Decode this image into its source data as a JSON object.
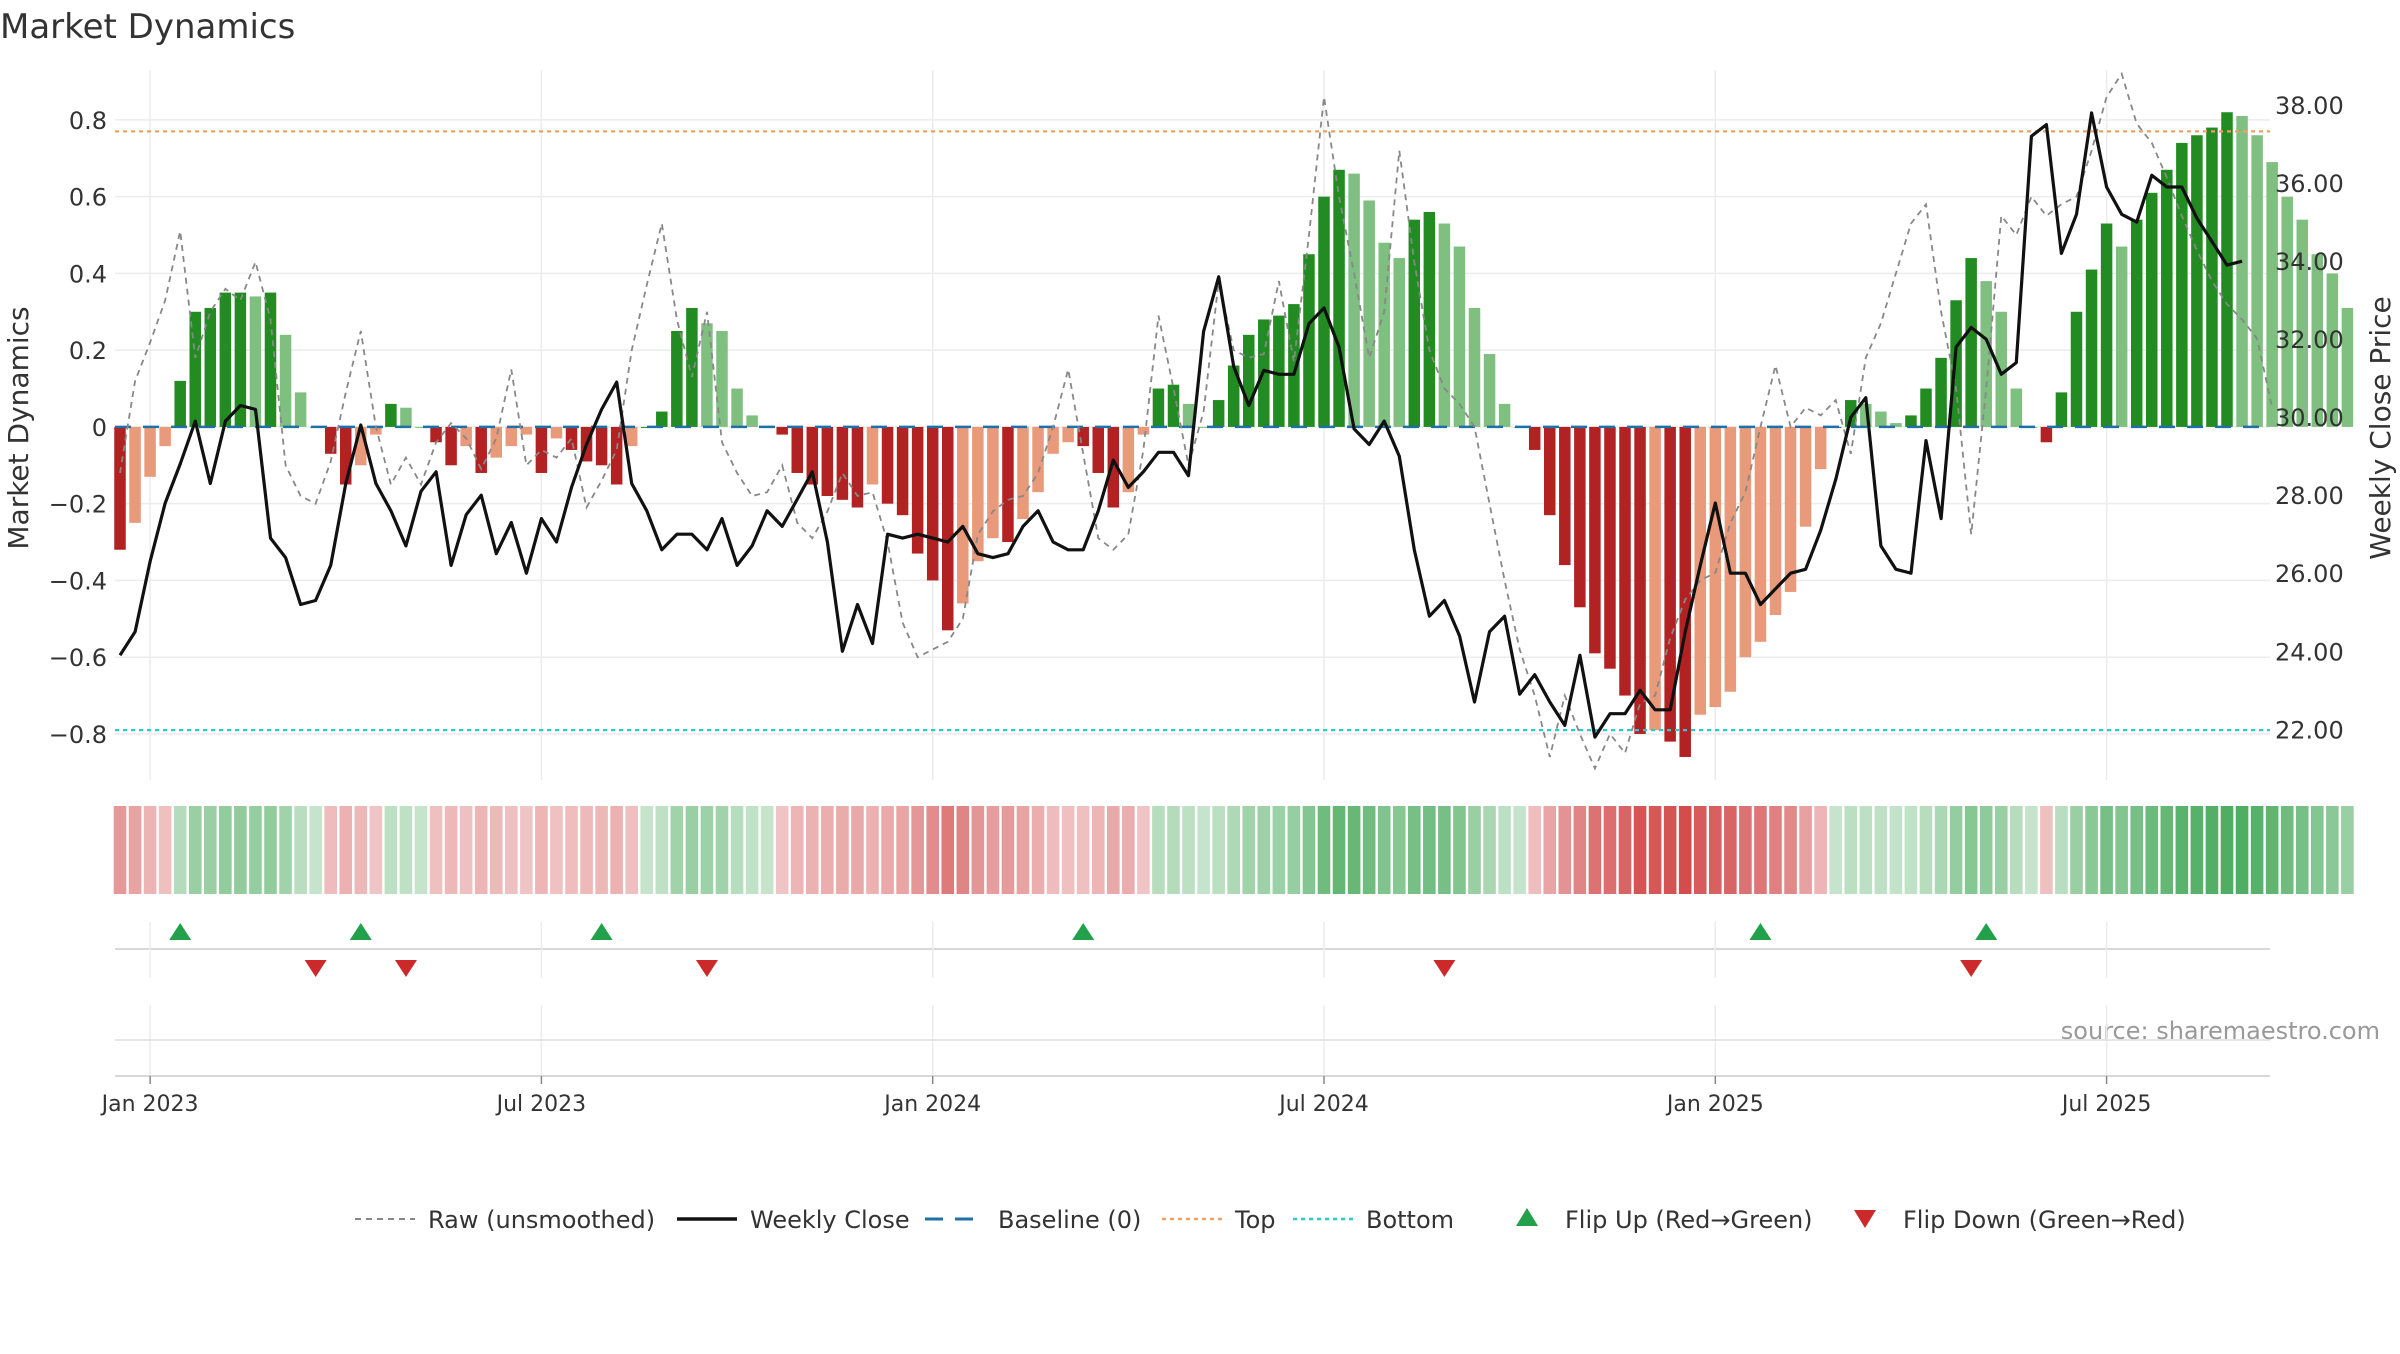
{
  "chart_data": {
    "type": "bar",
    "title": "Market Dynamics",
    "ylabel_left": "Market Dynamics",
    "ylabel_right": "Weekly Close Price",
    "ylim_left": [
      -0.92,
      0.93
    ],
    "ylim_right": [
      20.7,
      38.9
    ],
    "yticks_left": [
      "0.8",
      "0.6",
      "0.4",
      "0.2",
      "0",
      "−0.2",
      "−0.4",
      "−0.6",
      "−0.8"
    ],
    "ytick_values_left": [
      0.8,
      0.6,
      0.4,
      0.2,
      0,
      -0.2,
      -0.4,
      -0.6,
      -0.8
    ],
    "yticks_right": [
      "38.00",
      "36.00",
      "34.00",
      "32.00",
      "30.00",
      "28.00",
      "26.00",
      "24.00",
      "22.00"
    ],
    "ytick_values_right": [
      38,
      36,
      34,
      32,
      30,
      28,
      26,
      24,
      22
    ],
    "xticks": [
      {
        "label": "Jan 2023",
        "week": 2
      },
      {
        "label": "Jul 2023",
        "week": 28
      },
      {
        "label": "Jan 2024",
        "week": 54
      },
      {
        "label": "Jul 2024",
        "week": 80
      },
      {
        "label": "Jan 2025",
        "week": 106
      },
      {
        "label": "Jul 2025",
        "week": 132
      }
    ],
    "top_threshold": 0.77,
    "bottom_threshold": -0.79,
    "baseline": 0,
    "annotation": "source: sharemaestro.com",
    "grid": true,
    "legend_position": "bottom-center",
    "series": [
      {
        "name": "Market Dynamics",
        "kind": "bar",
        "values": [
          -0.32,
          -0.25,
          -0.13,
          -0.05,
          0.12,
          0.3,
          0.31,
          0.35,
          0.35,
          0.34,
          0.35,
          0.24,
          0.09,
          0.0,
          -0.07,
          -0.15,
          -0.1,
          -0.02,
          0.06,
          0.05,
          0.0,
          -0.04,
          -0.1,
          -0.05,
          -0.12,
          -0.08,
          -0.05,
          -0.02,
          -0.12,
          -0.03,
          -0.06,
          -0.09,
          -0.1,
          -0.15,
          -0.05,
          0.0,
          0.04,
          0.25,
          0.31,
          0.27,
          0.25,
          0.1,
          0.03,
          0.0,
          -0.02,
          -0.12,
          -0.15,
          -0.18,
          -0.19,
          -0.21,
          -0.15,
          -0.2,
          -0.23,
          -0.33,
          -0.4,
          -0.53,
          -0.46,
          -0.35,
          -0.29,
          -0.3,
          -0.24,
          -0.17,
          -0.07,
          -0.04,
          -0.05,
          -0.12,
          -0.21,
          -0.17,
          -0.02,
          0.1,
          0.11,
          0.06,
          0.0,
          0.07,
          0.16,
          0.24,
          0.28,
          0.29,
          0.32,
          0.45,
          0.6,
          0.67,
          0.66,
          0.59,
          0.48,
          0.44,
          0.54,
          0.56,
          0.53,
          0.47,
          0.31,
          0.19,
          0.06,
          0.0,
          -0.06,
          -0.23,
          -0.36,
          -0.47,
          -0.59,
          -0.63,
          -0.7,
          -0.8,
          -0.79,
          -0.82,
          -0.86,
          -0.75,
          -0.73,
          -0.69,
          -0.6,
          -0.56,
          -0.49,
          -0.43,
          -0.26,
          -0.11,
          0.0,
          0.07,
          0.06,
          0.04,
          0.01,
          0.03,
          0.1,
          0.18,
          0.33,
          0.44,
          0.38,
          0.3,
          0.1,
          0.0,
          -0.04,
          0.09,
          0.3,
          0.41,
          0.53,
          0.47,
          0.54,
          0.61,
          0.67,
          0.74,
          0.76,
          0.78,
          0.82,
          0.81,
          0.76,
          0.69,
          0.6,
          0.54,
          0.45,
          0.4,
          0.31
        ]
      },
      {
        "name": "Raw (unsmoothed)",
        "kind": "dashed-line",
        "values": [
          -0.12,
          0.12,
          0.22,
          0.33,
          0.51,
          0.18,
          0.3,
          0.36,
          0.33,
          0.43,
          0.28,
          -0.1,
          -0.18,
          -0.2,
          -0.09,
          0.09,
          0.25,
          0.0,
          -0.15,
          -0.08,
          -0.15,
          -0.04,
          0.01,
          -0.03,
          -0.11,
          -0.03,
          0.15,
          -0.1,
          -0.06,
          -0.08,
          -0.03,
          -0.21,
          -0.14,
          -0.06,
          0.2,
          0.37,
          0.53,
          0.28,
          0.13,
          0.3,
          -0.04,
          -0.12,
          -0.18,
          -0.17,
          -0.1,
          -0.25,
          -0.29,
          -0.22,
          -0.12,
          -0.18,
          -0.17,
          -0.3,
          -0.51,
          -0.6,
          -0.58,
          -0.56,
          -0.5,
          -0.28,
          -0.22,
          -0.19,
          -0.18,
          -0.12,
          0.0,
          0.15,
          -0.07,
          -0.29,
          -0.32,
          -0.28,
          -0.06,
          0.29,
          0.1,
          -0.1,
          0.04,
          0.38,
          0.2,
          0.18,
          0.19,
          0.38,
          0.17,
          0.5,
          0.86,
          0.6,
          0.4,
          0.18,
          0.3,
          0.72,
          0.43,
          0.2,
          0.1,
          0.06,
          0.0,
          -0.2,
          -0.4,
          -0.58,
          -0.7,
          -0.86,
          -0.7,
          -0.8,
          -0.89,
          -0.8,
          -0.85,
          -0.72,
          -0.7,
          -0.55,
          -0.45,
          -0.4,
          -0.38,
          -0.25,
          -0.17,
          0.0,
          0.16,
          0.0,
          0.05,
          0.03,
          0.07,
          -0.07,
          0.18,
          0.27,
          0.4,
          0.53,
          0.58,
          0.3,
          0.1,
          -0.28,
          0.1,
          0.55,
          0.5,
          0.6,
          0.55,
          0.58,
          0.6,
          0.72,
          0.86,
          0.92,
          0.79,
          0.74,
          0.65,
          0.55,
          0.46,
          0.38,
          0.32,
          0.28,
          0.23,
          0.05
        ]
      },
      {
        "name": "Weekly Close",
        "kind": "line",
        "axis": "right",
        "values": [
          23.9,
          24.5,
          26.3,
          27.8,
          28.8,
          29.9,
          28.3,
          29.9,
          30.3,
          30.2,
          26.9,
          26.4,
          25.2,
          25.3,
          26.2,
          28.3,
          29.8,
          28.3,
          27.6,
          26.7,
          28.1,
          28.6,
          26.2,
          27.5,
          28.0,
          26.5,
          27.3,
          26.0,
          27.4,
          26.8,
          28.2,
          29.3,
          30.2,
          30.9,
          28.3,
          27.6,
          26.6,
          27.0,
          27.0,
          26.6,
          27.4,
          26.2,
          26.7,
          27.6,
          27.2,
          27.9,
          28.6,
          26.8,
          24.0,
          25.2,
          24.2,
          27.0,
          26.9,
          27.0,
          26.9,
          26.8,
          27.2,
          26.5,
          26.4,
          26.5,
          27.2,
          27.6,
          26.8,
          26.6,
          26.6,
          27.6,
          28.9,
          28.2,
          28.6,
          29.1,
          29.1,
          28.5,
          32.2,
          33.6,
          31.3,
          30.3,
          31.2,
          31.1,
          31.1,
          32.4,
          32.8,
          31.8,
          29.7,
          29.3,
          29.9,
          29.0,
          26.6,
          24.9,
          25.3,
          24.4,
          22.7,
          24.5,
          24.9,
          22.9,
          23.4,
          22.7,
          22.1,
          23.9,
          21.8,
          22.4,
          22.4,
          23.0,
          22.5,
          22.5,
          24.5,
          26.2,
          27.8,
          26.0,
          26.0,
          25.2,
          25.6,
          26.0,
          26.1,
          27.1,
          28.4,
          30.0,
          30.5,
          26.7,
          26.1,
          26.0,
          29.4,
          27.4,
          31.8,
          32.3,
          32.0,
          31.1,
          31.4,
          37.2,
          37.5,
          34.2,
          35.2,
          37.8,
          35.9,
          35.2,
          35.0,
          36.2,
          35.9,
          35.9,
          35.1,
          34.5,
          33.9,
          34.0
        ]
      }
    ],
    "flip_up_weeks": [
      4,
      16,
      32,
      64,
      109,
      124
    ],
    "flip_down_weeks": [
      13,
      19,
      39,
      88,
      123
    ],
    "regime_strip": {
      "description_colors": {
        "red": "#cc3333",
        "green": "#2e9e44"
      }
    },
    "legend": [
      {
        "label": "Raw (unsmoothed)",
        "style": "dashed",
        "color": "#888888"
      },
      {
        "label": "Weekly Close",
        "style": "solid",
        "color": "#111111"
      },
      {
        "label": "Baseline (0)",
        "style": "dashed-long",
        "color": "#1f6fa8"
      },
      {
        "label": "Top",
        "style": "dotted",
        "color": "#f0a060"
      },
      {
        "label": "Bottom",
        "style": "dotted",
        "color": "#30c8d0"
      },
      {
        "label": "Flip Up (Red→Green)",
        "style": "triangle-up",
        "color": "#22a04a"
      },
      {
        "label": "Flip Down (Green→Red)",
        "style": "triangle-down",
        "color": "#cc2a2a"
      }
    ],
    "colors": {
      "bar_green_dark": "#228b22",
      "bar_green_light": "#7fbf7f",
      "bar_red_dark": "#b22222",
      "bar_red_light": "#e89a7a",
      "top_line": "#f0a060",
      "bottom_line": "#30c8d0",
      "baseline": "#1f6fa8",
      "close_line": "#111111",
      "raw_line": "#888888",
      "flip_up": "#22a04a",
      "flip_down": "#cc2a2a"
    }
  }
}
